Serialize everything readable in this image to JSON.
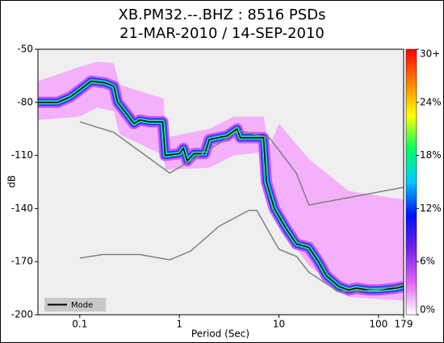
{
  "chart_data": {
    "type": "line",
    "title": "XB.PM32.--.BHZ : 8516 PSDs",
    "subtitle": "21-MAR-2010 / 14-SEP-2010",
    "x_label": "Period (Sec)",
    "y_label": "dB",
    "x_log": true,
    "xlim": [
      0.038,
      179
    ],
    "xticks": [
      0.1,
      1,
      10,
      100,
      179
    ],
    "ylim": [
      -200,
      -50
    ],
    "yticks": [
      -50,
      -80,
      -110,
      -140,
      -170,
      -200
    ],
    "legend": "lower left",
    "envelope": {
      "color": "#f4b0fb",
      "x": [
        0.038,
        0.1,
        0.15,
        0.22,
        0.25,
        0.7,
        0.72,
        2,
        3.5,
        7,
        8,
        10,
        20,
        50,
        179
      ],
      "upper": [
        -68,
        -60,
        -57,
        -58,
        -70,
        -78,
        -100,
        -95,
        -88,
        -88,
        -105,
        -92,
        -112,
        -130,
        -135
      ],
      "lower": [
        -90,
        -88,
        -83,
        -85,
        -98,
        -110,
        -118,
        -117,
        -110,
        -108,
        -125,
        -150,
        -172,
        -190,
        -192
      ]
    },
    "series": [
      {
        "name": "Mode",
        "color": "#000000",
        "x": [
          0.038,
          0.06,
          0.08,
          0.1,
          0.13,
          0.18,
          0.22,
          0.24,
          0.3,
          0.35,
          0.4,
          0.5,
          0.68,
          0.72,
          1.0,
          1.1,
          1.2,
          1.4,
          1.8,
          2.0,
          3.0,
          3.8,
          4.1,
          7.0,
          7.5,
          9,
          12,
          15,
          20,
          25,
          30,
          40,
          50,
          60,
          80,
          100,
          150,
          179
        ],
        "values": [
          -80,
          -80,
          -77,
          -73,
          -68,
          -69,
          -71,
          -80,
          -87,
          -92,
          -90,
          -91,
          -91,
          -110,
          -109,
          -106,
          -113,
          -109,
          -109,
          -101,
          -99,
          -95,
          -100,
          -100,
          -125,
          -140,
          -152,
          -160,
          -162,
          -170,
          -178,
          -184,
          -186,
          -185,
          -186,
          -186,
          -185,
          -184
        ]
      },
      {
        "color": "#808080",
        "x": [
          0.1,
          0.22,
          0.8,
          1.5,
          4,
          8,
          15,
          20,
          179
        ],
        "values": [
          -91,
          -97,
          -120,
          -111,
          -96,
          -100,
          -120,
          -138,
          -128
        ]
      },
      {
        "color": "#808080",
        "x": [
          0.1,
          0.17,
          0.4,
          0.8,
          1.3,
          2.5,
          5,
          6,
          10,
          15,
          20,
          40,
          100,
          179
        ],
        "values": [
          -168,
          -166,
          -166,
          -169,
          -164,
          -150,
          -141,
          -141,
          -163,
          -167,
          -176,
          -187,
          -186,
          -183
        ]
      }
    ],
    "colorbar": {
      "clim": [
        0,
        30
      ],
      "colors": [
        "#ffffff",
        "#e060f8",
        "#7020e8",
        "#0010ff",
        "#00c8ff",
        "#00ff60",
        "#ffff00",
        "#ff8000",
        "#ff0000"
      ],
      "ticks": [
        {
          "value": 0,
          "label": "0%"
        },
        {
          "value": 6,
          "label": "6%"
        },
        {
          "value": 12,
          "label": "12%"
        },
        {
          "value": 18,
          "label": "18%"
        },
        {
          "value": 24,
          "label": "24%"
        },
        {
          "value": 30,
          "label": "30+"
        }
      ]
    }
  }
}
